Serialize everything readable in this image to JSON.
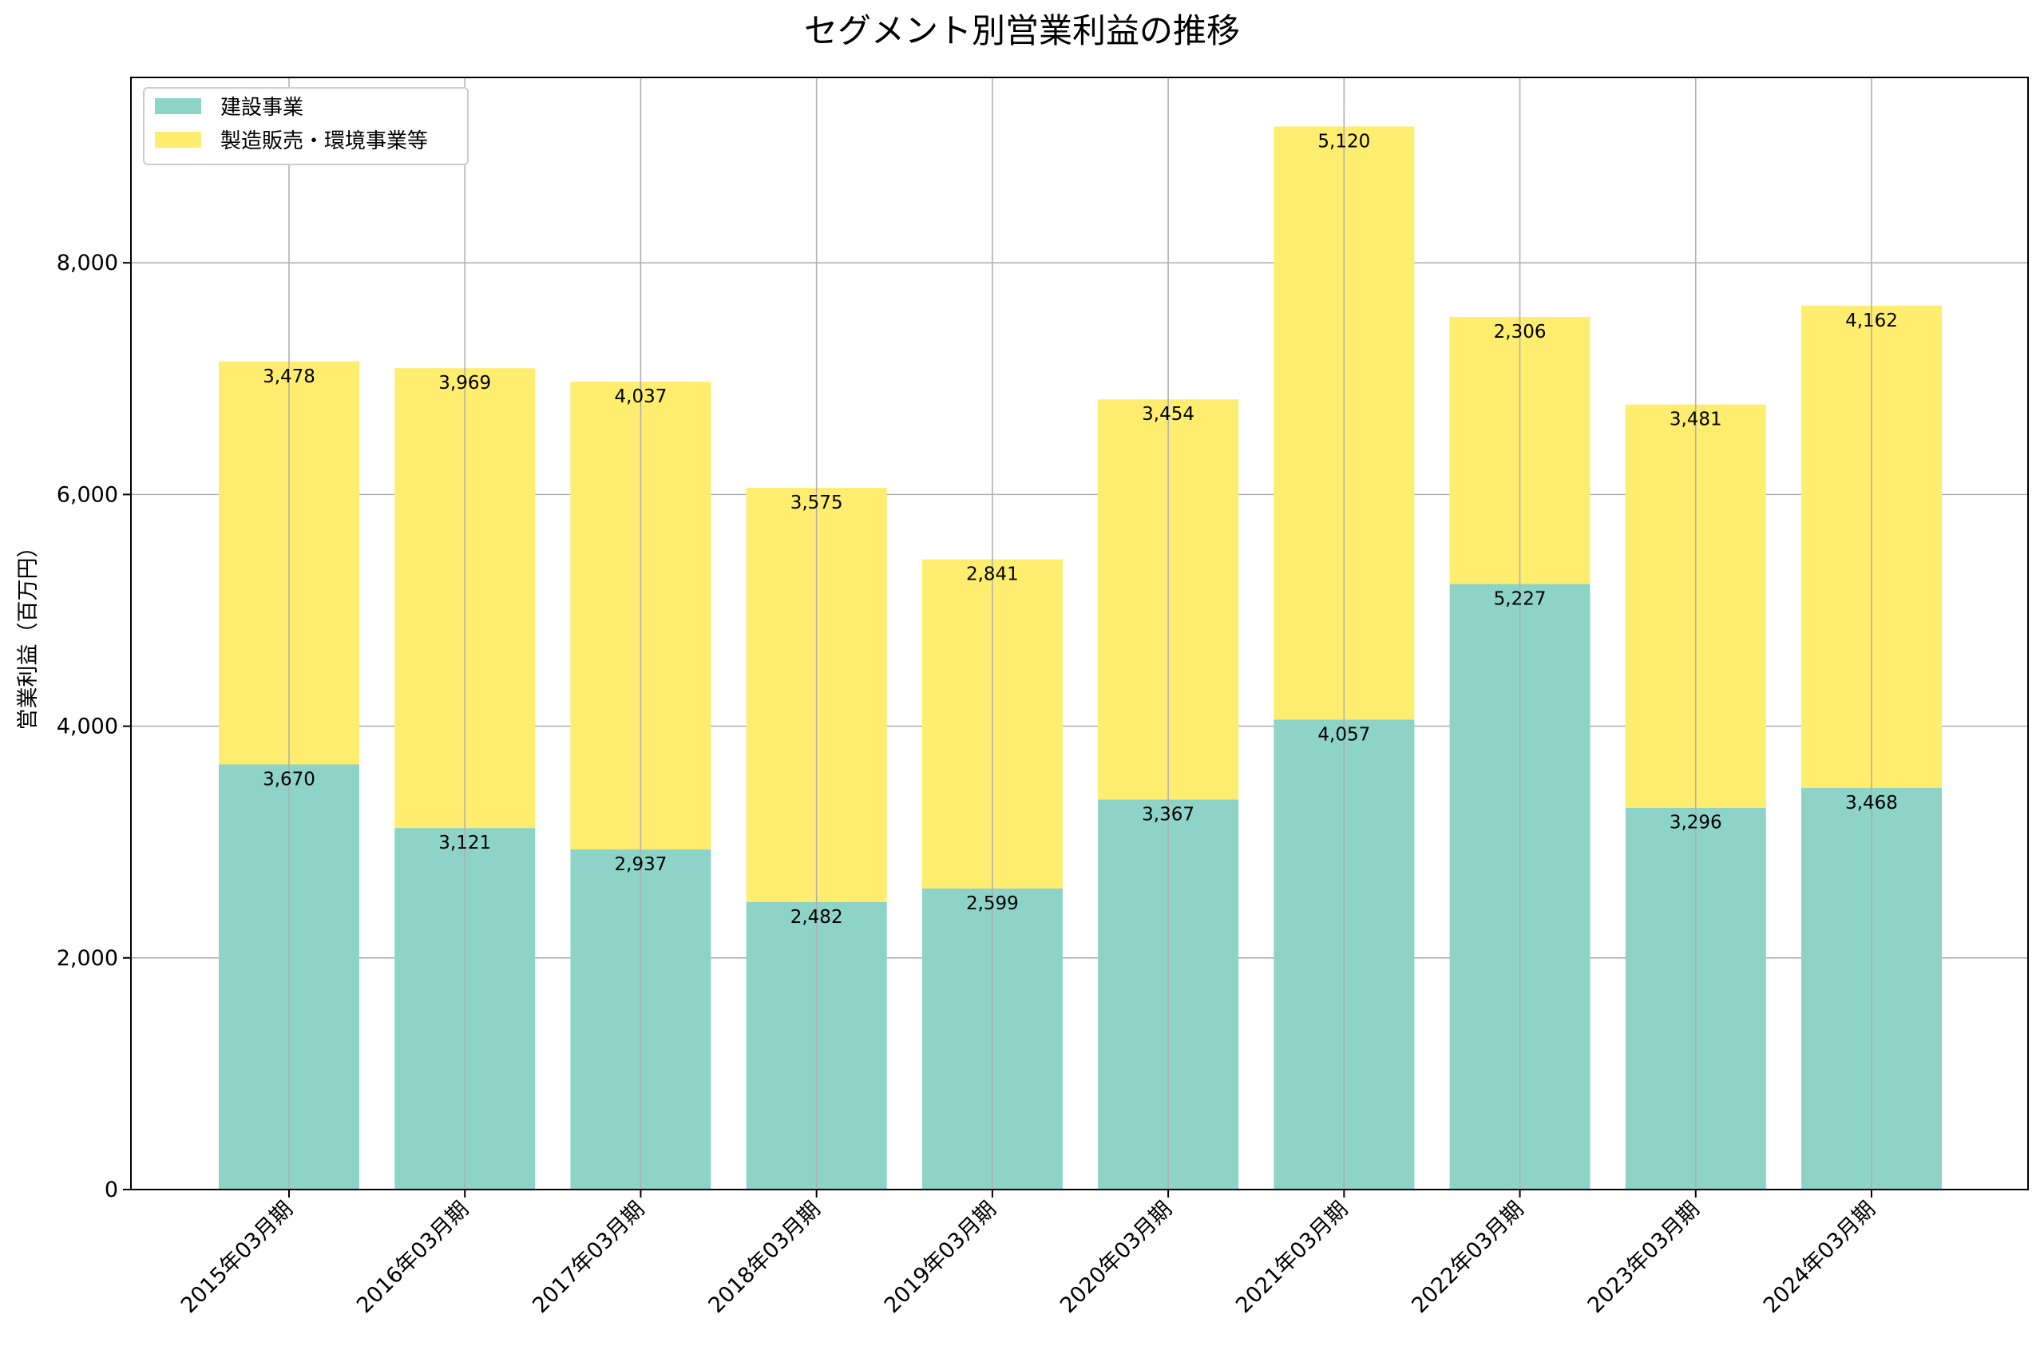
{
  "chart_data": {
    "type": "bar",
    "stacked": true,
    "title": "セグメント別営業利益の推移",
    "xlabel": "",
    "ylabel": "営業利益（百万円）",
    "ylim": [
      0,
      9600
    ],
    "yticks": [
      0,
      2000,
      4000,
      6000,
      8000
    ],
    "ytick_labels": [
      "0",
      "2,000",
      "4,000",
      "6,000",
      "8,000"
    ],
    "grid": true,
    "legend_position": "top-left",
    "categories": [
      "2015年03月期",
      "2016年03月期",
      "2017年03月期",
      "2018年03月期",
      "2019年03月期",
      "2020年03月期",
      "2021年03月期",
      "2022年03月期",
      "2023年03月期",
      "2024年03月期"
    ],
    "series": [
      {
        "name": "建設事業",
        "color": "#8dd3c7",
        "values": [
          3670,
          3121,
          2937,
          2482,
          2599,
          3367,
          4057,
          5227,
          3296,
          3468
        ],
        "labels": [
          "3,670",
          "3,121",
          "2,937",
          "2,482",
          "2,599",
          "3,367",
          "4,057",
          "5,227",
          "3,296",
          "3,468"
        ]
      },
      {
        "name": "製造販売・環境事業等",
        "color": "#ffed6f",
        "values": [
          3478,
          3969,
          4037,
          3575,
          2841,
          3454,
          5120,
          2306,
          3481,
          4162
        ],
        "labels": [
          "3,478",
          "3,969",
          "4,037",
          "3,575",
          "2,841",
          "3,454",
          "5,120",
          "2,306",
          "3,481",
          "4,162"
        ]
      }
    ]
  }
}
